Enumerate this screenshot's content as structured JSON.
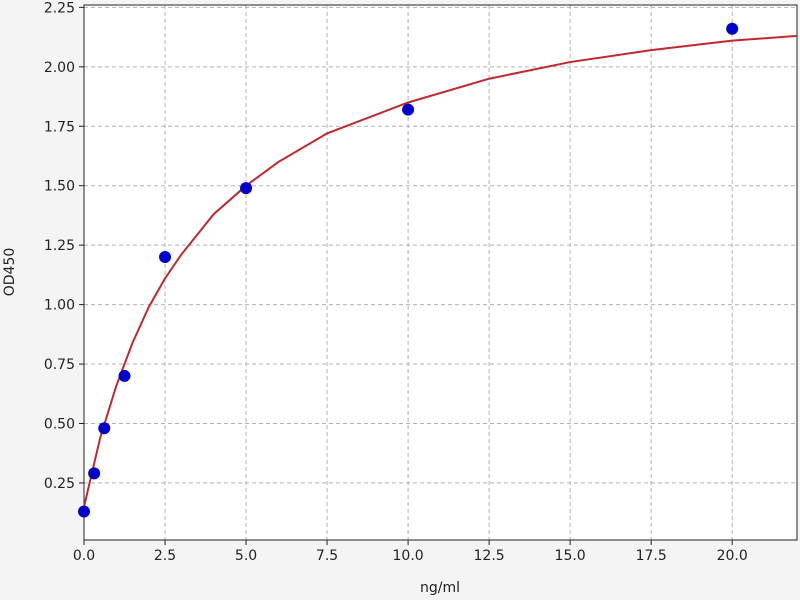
{
  "chart_data": {
    "type": "scatter",
    "xlabel": "ng/ml",
    "ylabel": "OD450",
    "xlim": [
      0,
      22
    ],
    "ylim": [
      0.01,
      2.26
    ],
    "xticks": [
      {
        "value": 0,
        "label": "0.0"
      },
      2.5,
      {
        "value": 5,
        "label": "5.0"
      },
      7.5,
      {
        "value": 10,
        "label": "10.0"
      },
      12.5,
      {
        "value": 15,
        "label": "15.0"
      },
      17.5,
      {
        "value": 20,
        "label": "20.0"
      }
    ],
    "yticks": [
      0.25,
      {
        "value": 0.5,
        "label": "0.50"
      },
      {
        "value": 0.75,
        "label": "0.75"
      },
      {
        "value": 1,
        "label": "1.00"
      },
      1.25,
      {
        "value": 1.5,
        "label": "1.50"
      },
      1.75,
      {
        "value": 2,
        "label": "2.00"
      },
      2.25
    ],
    "grid": true,
    "series": [
      {
        "type": "scatter",
        "color": "#0000cc",
        "x": [
          0,
          0.3125,
          0.625,
          1.25,
          2.5,
          5,
          10,
          20
        ],
        "values": [
          0.13,
          0.29,
          0.48,
          0.7,
          1.2,
          1.49,
          1.82,
          2.16
        ]
      },
      {
        "type": "line",
        "color": "#c0282d",
        "x": [
          0,
          0.5,
          1,
          1.5,
          2,
          2.5,
          3,
          4,
          5,
          6,
          7.5,
          10,
          12.5,
          15,
          17.5,
          20,
          22
        ],
        "values": [
          0.15,
          0.44,
          0.66,
          0.84,
          0.99,
          1.11,
          1.21,
          1.38,
          1.5,
          1.6,
          1.72,
          1.85,
          1.95,
          2.02,
          2.07,
          2.11,
          2.13
        ]
      }
    ]
  }
}
